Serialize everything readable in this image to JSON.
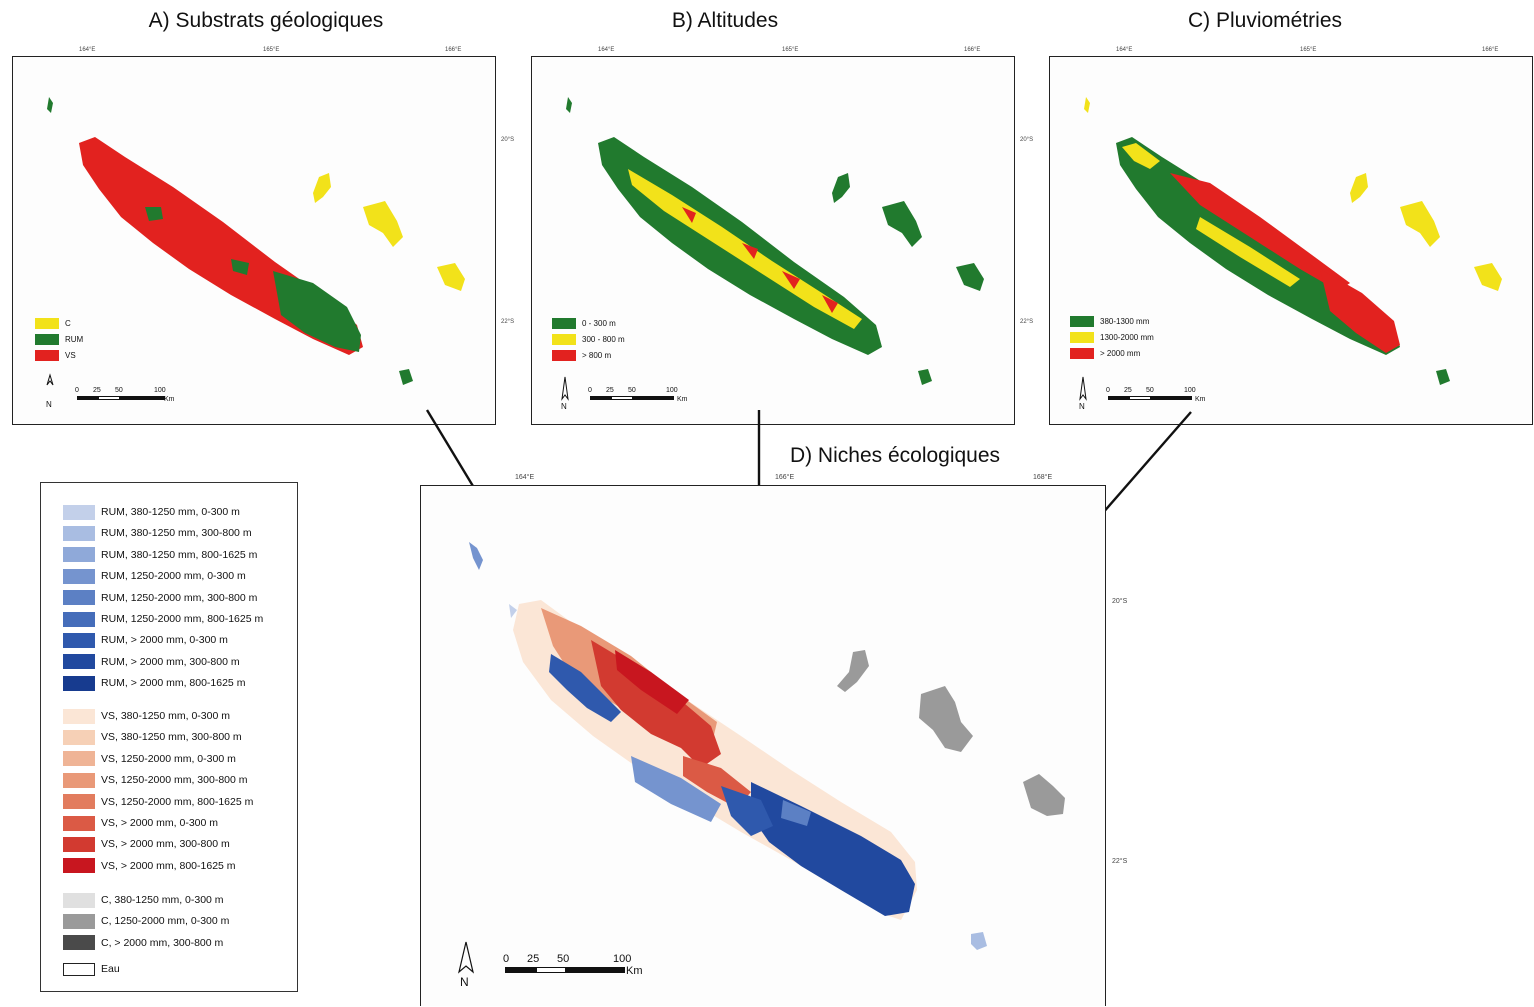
{
  "panels": {
    "a": {
      "title": "A) Substrats géologiques",
      "legend": [
        {
          "label": "C",
          "color": "#f2e21a"
        },
        {
          "label": "RUM",
          "color": "#217a2e"
        },
        {
          "label": "VS",
          "color": "#e2221f"
        }
      ],
      "ticks_top": [
        "164°E",
        "165°E",
        "166°E"
      ],
      "ticks_right": [
        "20°S",
        "22°S"
      ]
    },
    "b": {
      "title": "B) Altitudes",
      "legend": [
        {
          "label": "0 - 300 m",
          "color": "#217a2e"
        },
        {
          "label": "300 - 800 m",
          "color": "#f2e21a"
        },
        {
          "label": "> 800 m",
          "color": "#e2221f"
        }
      ],
      "ticks_top": [
        "164°E",
        "165°E",
        "166°E"
      ],
      "ticks_right": [
        "20°S",
        "22°S"
      ]
    },
    "c": {
      "title": "C) Pluviométries",
      "legend": [
        {
          "label": "380-1300 mm",
          "color": "#217a2e"
        },
        {
          "label": "1300-2000 mm",
          "color": "#f2e21a"
        },
        {
          "label": "> 2000 mm",
          "color": "#e2221f"
        }
      ],
      "ticks_top": [
        "164°E",
        "165°E",
        "166°E"
      ],
      "ticks_right": [
        "20°S",
        "22°S"
      ]
    },
    "d": {
      "title": "D) Niches écologiques",
      "ticks_top": [
        "164°E",
        "166°E",
        "168°E"
      ],
      "ticks_right": [
        "20°S",
        "22°S"
      ]
    }
  },
  "scale_bar": {
    "labels": [
      "0",
      "25",
      "50",
      "100"
    ],
    "unit": "Km",
    "north": "N"
  },
  "main_legend": {
    "rum": [
      {
        "label": "RUM, 380-1250 mm, 0-300 m",
        "color": "#c3d0ea"
      },
      {
        "label": "RUM, 380-1250 mm, 300-800 m",
        "color": "#a9bde2"
      },
      {
        "label": "RUM, 380-1250 mm, 800-1625 m",
        "color": "#8fa9d9"
      },
      {
        "label": "RUM, 1250-2000 mm, 0-300 m",
        "color": "#7594cf"
      },
      {
        "label": "RUM, 1250-2000 mm, 300-800 m",
        "color": "#5c80c4"
      },
      {
        "label": "RUM, 1250-2000 mm, 800-1625 m",
        "color": "#456dba"
      },
      {
        "label": "RUM, > 2000 mm, 0-300 m",
        "color": "#2f59ad"
      },
      {
        "label": "RUM, > 2000 mm, 300-800 m",
        "color": "#21499f"
      },
      {
        "label": "RUM, > 2000 mm, 800-1625 m",
        "color": "#173b8f"
      }
    ],
    "vs": [
      {
        "label": "VS, 380-1250 mm, 0-300 m",
        "color": "#fbe6d6"
      },
      {
        "label": "VS, 380-1250 mm, 300-800 m",
        "color": "#f6d0b6"
      },
      {
        "label": "VS, 1250-2000 mm, 0-300 m",
        "color": "#efb496"
      },
      {
        "label": "VS, 1250-2000 mm, 300-800 m",
        "color": "#e99978"
      },
      {
        "label": "VS, 1250-2000 mm, 800-1625 m",
        "color": "#e27c5e"
      },
      {
        "label": "VS, > 2000 mm, 0-300 m",
        "color": "#db5a45"
      },
      {
        "label": "VS, > 2000 mm, 300-800 m",
        "color": "#d23a30"
      },
      {
        "label": "VS, > 2000 mm, 800-1625 m",
        "color": "#c8161f"
      }
    ],
    "c": [
      {
        "label": "C, 380-1250 mm, 0-300 m",
        "color": "#e0e0e0"
      },
      {
        "label": "C, 1250-2000 mm, 0-300 m",
        "color": "#9a9a9a"
      },
      {
        "label": "C, > 2000 mm, 300-800 m",
        "color": "#4a4a4a"
      }
    ],
    "water": {
      "label": "Eau",
      "color": "#ffffff"
    }
  }
}
